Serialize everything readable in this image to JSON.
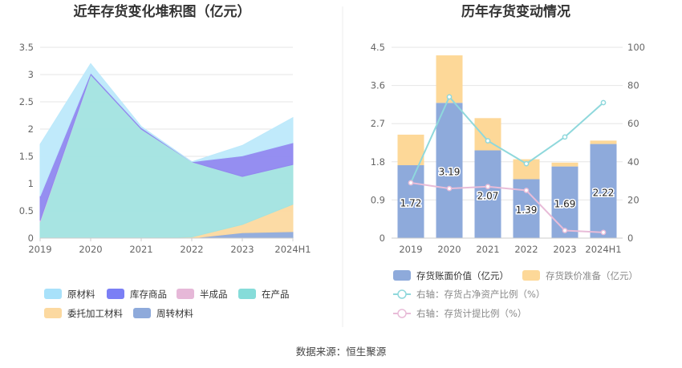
{
  "chart_data": [
    {
      "type": "area",
      "stacked": true,
      "title": "近年存货变化堆积图（亿元）",
      "categories": [
        "2019",
        "2020",
        "2021",
        "2022",
        "2023",
        "2024H1"
      ],
      "ylim": [
        0,
        3.5
      ],
      "yticks": [
        "0",
        "0.5",
        "1",
        "1.5",
        "2",
        "2.5",
        "3",
        "3.5"
      ],
      "legend_position": "bottom",
      "series": [
        {
          "name": "周转材料",
          "values": [
            0,
            0,
            0,
            0,
            0.1,
            0.12
          ],
          "color": "#8eaadb"
        },
        {
          "name": "委托加工材料",
          "values": [
            0,
            0,
            0,
            0.02,
            0.15,
            0.5
          ],
          "color": "#fcd9a0"
        },
        {
          "name": "在产品",
          "values": [
            0.3,
            3.0,
            2.0,
            1.38,
            0.88,
            0.73
          ],
          "color": "#a2e3e0"
        },
        {
          "name": "半成品",
          "values": [
            0.02,
            0,
            0,
            0,
            0,
            0
          ],
          "color": "#e6bedc"
        },
        {
          "name": "库存商品",
          "values": [
            0.45,
            0.03,
            0.03,
            0,
            0.38,
            0.4
          ],
          "color": "#8f88f0"
        },
        {
          "name": "原材料",
          "values": [
            0.95,
            0.17,
            0.02,
            0,
            0.19,
            0.46
          ],
          "color": "#bde9fb"
        }
      ],
      "legend": [
        {
          "name": "原材料",
          "color": "#a8e1fa"
        },
        {
          "name": "库存商品",
          "color": "#7b7ff5"
        },
        {
          "name": "半成品",
          "color": "#e6b8d8"
        },
        {
          "name": "在产品",
          "color": "#86dcd9"
        },
        {
          "name": "委托加工材料",
          "color": "#fcd9a0"
        },
        {
          "name": "周转材料",
          "color": "#8eaadb"
        }
      ]
    },
    {
      "type": "bar+line",
      "title": "历年存货变动情况",
      "categories": [
        "2019",
        "2020",
        "2021",
        "2022",
        "2023",
        "2024H1"
      ],
      "ylim": [
        0,
        4.5
      ],
      "yticks": [
        "0",
        "0.9",
        "1.8",
        "2.7",
        "3.6",
        "4.5"
      ],
      "y2lim": [
        0,
        100
      ],
      "y2ticks": [
        "0",
        "20",
        "40",
        "60",
        "80",
        "100"
      ],
      "bars": {
        "book_value": {
          "name": "存货账面价值（亿元）",
          "values": [
            1.72,
            3.19,
            2.07,
            1.39,
            1.69,
            2.22
          ],
          "labels": [
            "1.72",
            "3.19",
            "2.07",
            "1.39",
            "1.69",
            "2.22"
          ],
          "color": "#8eaadb"
        },
        "impairment": {
          "name": "存货跌价准备（亿元）",
          "values": [
            0.72,
            1.12,
            0.76,
            0.47,
            0.09,
            0.08
          ],
          "color": "#fdd898"
        }
      },
      "lines": [
        {
          "name": "右轴：存货占净资产比例（%）",
          "values": [
            29,
            74,
            51,
            39,
            53,
            71
          ],
          "color": "#8fd8dc"
        },
        {
          "name": "右轴：存货计提比例（%）",
          "values": [
            29,
            26,
            27,
            25,
            4,
            3
          ],
          "color": "#e8bcd8"
        }
      ]
    }
  ],
  "source_text": "数据来源：恒生聚源"
}
